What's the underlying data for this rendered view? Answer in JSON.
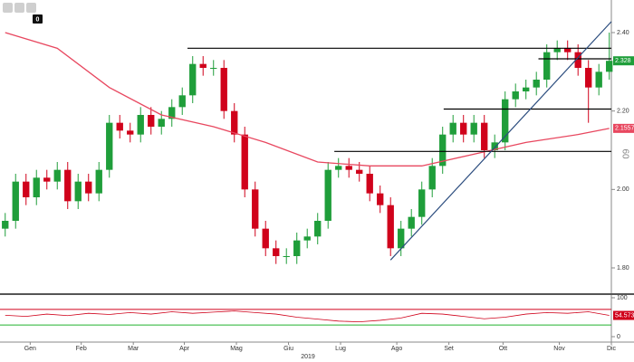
{
  "toolbar": {
    "badge": "0"
  },
  "chart_data": {
    "type": "candlestick",
    "open": [
      1.9,
      1.92,
      2.02,
      1.98,
      2.03,
      2.02,
      2.05,
      1.97,
      2.02,
      1.99,
      2.05,
      2.17,
      2.15,
      2.14,
      2.19,
      2.16,
      2.18,
      2.21,
      2.24,
      2.32,
      2.31,
      2.31,
      2.2,
      2.14,
      2.0,
      1.9,
      1.85,
      1.83,
      1.83,
      1.87,
      1.88,
      1.92,
      2.05,
      2.06,
      2.05,
      2.04,
      1.99,
      1.96,
      1.85,
      1.9,
      1.93,
      2.0,
      2.06,
      2.14,
      2.17,
      2.14,
      2.17,
      2.1,
      2.12,
      2.23,
      2.25,
      2.26,
      2.28,
      2.35,
      2.36,
      2.35,
      2.31,
      2.26,
      2.3
    ],
    "high": [
      1.94,
      2.04,
      2.04,
      2.05,
      2.05,
      2.07,
      2.07,
      2.04,
      2.04,
      2.07,
      2.19,
      2.19,
      2.17,
      2.21,
      2.21,
      2.2,
      2.23,
      2.26,
      2.34,
      2.34,
      2.33,
      2.33,
      2.22,
      2.16,
      2.02,
      1.92,
      1.87,
      1.85,
      1.89,
      1.9,
      1.94,
      2.07,
      2.08,
      2.08,
      2.07,
      2.06,
      2.01,
      1.98,
      1.92,
      1.95,
      2.02,
      2.08,
      2.16,
      2.19,
      2.19,
      2.19,
      2.19,
      2.14,
      2.25,
      2.27,
      2.28,
      2.3,
      2.37,
      2.38,
      2.38,
      2.37,
      2.33,
      2.32,
      2.4
    ],
    "low": [
      1.88,
      1.9,
      1.96,
      1.96,
      2.0,
      2.0,
      1.95,
      1.95,
      1.97,
      1.97,
      2.03,
      2.13,
      2.12,
      2.12,
      2.14,
      2.14,
      2.16,
      2.19,
      2.22,
      2.29,
      2.29,
      2.18,
      2.12,
      1.98,
      1.88,
      1.83,
      1.81,
      1.81,
      1.81,
      1.85,
      1.86,
      1.9,
      2.03,
      2.03,
      2.02,
      1.97,
      1.94,
      1.83,
      1.83,
      1.88,
      1.91,
      1.98,
      2.04,
      2.12,
      2.12,
      2.12,
      2.08,
      2.08,
      2.1,
      2.21,
      2.23,
      2.24,
      2.26,
      2.33,
      2.33,
      2.29,
      2.17,
      2.24,
      2.28
    ],
    "close": [
      1.92,
      2.02,
      1.98,
      2.03,
      2.02,
      2.05,
      1.97,
      2.02,
      1.99,
      2.05,
      2.17,
      2.15,
      2.14,
      2.19,
      2.16,
      2.18,
      2.21,
      2.24,
      2.32,
      2.31,
      2.31,
      2.2,
      2.14,
      2.0,
      1.9,
      1.85,
      1.83,
      1.83,
      1.87,
      1.88,
      1.92,
      2.05,
      2.06,
      2.05,
      2.04,
      1.99,
      1.96,
      1.85,
      1.9,
      1.93,
      2.0,
      2.06,
      2.14,
      2.17,
      2.14,
      2.17,
      2.1,
      2.12,
      2.23,
      2.25,
      2.26,
      2.28,
      2.35,
      2.36,
      2.35,
      2.31,
      2.26,
      2.3,
      2.328
    ],
    "up_color": "#1f9e3a",
    "down_color": "#d0021b",
    "moving_average": {
      "color": "#e8475f",
      "x": [
        0,
        5,
        10,
        15,
        20,
        25,
        30,
        35,
        40,
        45,
        50,
        55,
        58
      ],
      "values": [
        2.4,
        2.36,
        2.26,
        2.19,
        2.16,
        2.12,
        2.07,
        2.06,
        2.06,
        2.09,
        2.12,
        2.14,
        2.1557
      ]
    },
    "levels": [
      {
        "value": 2.36,
        "from": 17.5,
        "to": 58.2
      },
      {
        "value": 2.333,
        "from": 51.2,
        "to": 58.2
      },
      {
        "value": 2.205,
        "from": 42.1,
        "to": 58.2
      },
      {
        "value": 2.097,
        "from": 31.6,
        "to": 58.2
      }
    ],
    "level_color": "#000000",
    "trendline": {
      "color": "#2b4c7e",
      "x": [
        37,
        58.2
      ],
      "y": [
        1.82,
        2.428
      ]
    },
    "xlim": [
      -0.5,
      58.2
    ],
    "ylim": [
      1.74,
      2.46
    ],
    "yticks": [
      {
        "value": 1.8,
        "label": "1.80"
      },
      {
        "value": 2.0,
        "label": "2.00"
      },
      {
        "value": 2.2,
        "label": "2.20"
      },
      {
        "value": 2.4,
        "label": "2.40"
      }
    ],
    "xticks": [
      {
        "value": 2.4,
        "label": "Gen"
      },
      {
        "value": 7.3,
        "label": "Feb"
      },
      {
        "value": 12.3,
        "label": "Mar"
      },
      {
        "value": 17.2,
        "label": "Apr"
      },
      {
        "value": 22.2,
        "label": "Mag"
      },
      {
        "value": 27.2,
        "label": "Giu"
      },
      {
        "value": 32.2,
        "label": "Lug"
      },
      {
        "value": 37.6,
        "label": "Ago"
      },
      {
        "value": 42.6,
        "label": "Set"
      },
      {
        "value": 47.8,
        "label": "Ott"
      },
      {
        "value": 53.2,
        "label": "Nov"
      },
      {
        "value": 58.2,
        "label": "Dic"
      }
    ],
    "x_group_label": "2019",
    "side_label": "60",
    "indicator": {
      "color": "#d0021b",
      "x": [
        0,
        2,
        4,
        6,
        8,
        10,
        12,
        14,
        16,
        18,
        20,
        22,
        24,
        26,
        28,
        30,
        32,
        34,
        36,
        38,
        40,
        42,
        44,
        46,
        48,
        50,
        52,
        54,
        56,
        58
      ],
      "values": [
        55,
        52,
        58,
        54,
        60,
        57,
        62,
        58,
        64,
        60,
        63,
        66,
        62,
        58,
        50,
        45,
        40,
        38,
        42,
        48,
        60,
        58,
        52,
        46,
        50,
        58,
        62,
        60,
        64,
        54.5737
      ],
      "ylim": [
        0,
        100
      ],
      "yticks": [
        0,
        100
      ],
      "levels": [
        {
          "value": 70,
          "color": "#d0021b"
        },
        {
          "value": 30,
          "color": "#22b02e"
        }
      ]
    }
  }
}
